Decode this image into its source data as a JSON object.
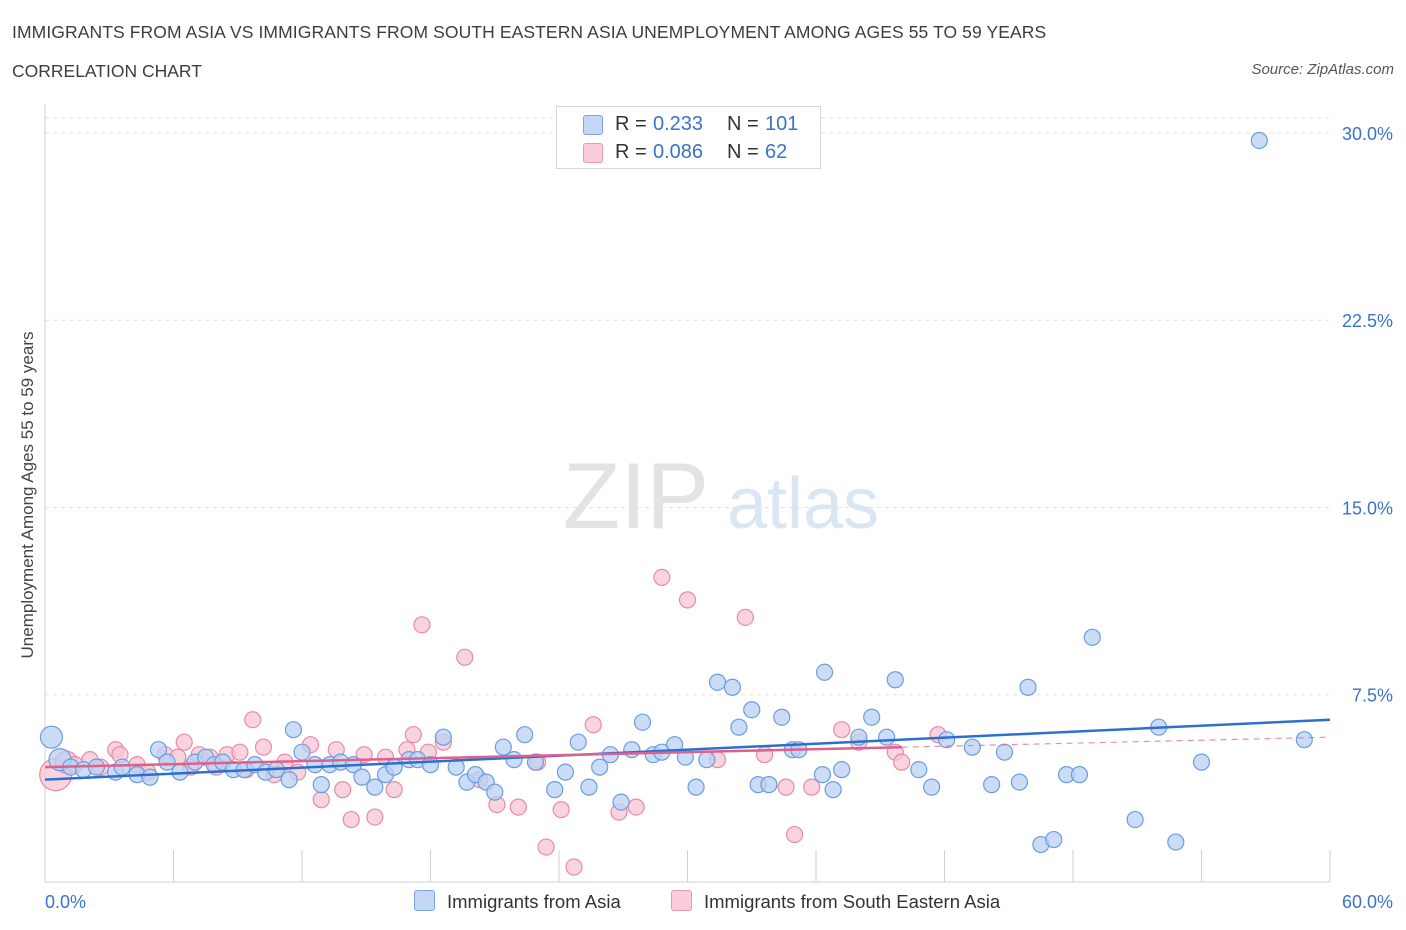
{
  "header": {
    "title": "IMMIGRANTS FROM ASIA VS IMMIGRANTS FROM SOUTH EASTERN ASIA UNEMPLOYMENT AMONG AGES 55 TO 59 YEARS",
    "subtitle": "CORRELATION CHART",
    "source": "Source: ZipAtlas.com"
  },
  "watermark": {
    "zip": "ZIP",
    "atlas": "atlas"
  },
  "legend": {
    "rows": [
      {
        "r_label": "R =",
        "r_value": "0.233",
        "n_label": "N =",
        "n_value": "101"
      },
      {
        "r_label": "R =",
        "r_value": "0.086",
        "n_label": "N =",
        "n_value": "62"
      }
    ]
  },
  "colors": {
    "blue_fill": "#b9d1f3",
    "blue_stroke": "#6b9de0",
    "blue_line": "#2d6fcf",
    "pink_fill": "#f7c4d3",
    "pink_stroke": "#e88aa8",
    "pink_line": "#e0608c",
    "axis_text": "#3a73c8",
    "grid": "#e2e2e2"
  },
  "chart_data": {
    "type": "scatter",
    "title": "IMMIGRANTS FROM ASIA VS IMMIGRANTS FROM SOUTH EASTERN ASIA UNEMPLOYMENT AMONG AGES 55 TO 59 YEARS",
    "xlabel": "",
    "ylabel": "Unemployment Among Ages 55 to 59 years",
    "xlim": [
      0,
      60
    ],
    "ylim": [
      0,
      30
    ],
    "x_tick_labels": [
      "0.0%",
      "60.0%"
    ],
    "y_ticks": [
      7.5,
      15.0,
      22.5,
      30.0
    ],
    "y_tick_labels": [
      "7.5%",
      "15.0%",
      "22.5%",
      "30.0%"
    ],
    "grid": true,
    "legend_position": "top-center",
    "series": [
      {
        "name": "Immigrants from Asia",
        "color": "#6b9de0",
        "trend": {
          "x": [
            0,
            60
          ],
          "y": [
            4.1,
            6.5
          ]
        },
        "points": [
          [
            0.3,
            5.8,
            2
          ],
          [
            0.7,
            4.9,
            2
          ],
          [
            1.2,
            4.6,
            1
          ],
          [
            1.8,
            4.5,
            1
          ],
          [
            2.4,
            4.6,
            1
          ],
          [
            3.3,
            4.4,
            1
          ],
          [
            3.6,
            4.6,
            1
          ],
          [
            4.3,
            4.3,
            1
          ],
          [
            4.9,
            4.2,
            1
          ],
          [
            5.3,
            5.3,
            1
          ],
          [
            5.7,
            4.8,
            1
          ],
          [
            6.3,
            4.4,
            1
          ],
          [
            7.0,
            4.8,
            1
          ],
          [
            7.5,
            5.0,
            1
          ],
          [
            7.9,
            4.7,
            1
          ],
          [
            8.3,
            4.8,
            1
          ],
          [
            8.8,
            4.5,
            1
          ],
          [
            9.3,
            4.5,
            1
          ],
          [
            9.8,
            4.7,
            1
          ],
          [
            10.3,
            4.4,
            1
          ],
          [
            10.8,
            4.5,
            1
          ],
          [
            11.4,
            4.1,
            1
          ],
          [
            11.6,
            6.1,
            1
          ],
          [
            12.0,
            5.2,
            1
          ],
          [
            12.6,
            4.7,
            1
          ],
          [
            12.9,
            3.9,
            1
          ],
          [
            13.3,
            4.7,
            1
          ],
          [
            13.8,
            4.8,
            1
          ],
          [
            14.4,
            4.7,
            1
          ],
          [
            14.8,
            4.2,
            1
          ],
          [
            15.4,
            3.8,
            1
          ],
          [
            15.9,
            4.3,
            1
          ],
          [
            16.3,
            4.6,
            1
          ],
          [
            17.0,
            4.9,
            1
          ],
          [
            17.4,
            4.9,
            1
          ],
          [
            18.0,
            4.7,
            1
          ],
          [
            18.6,
            5.8,
            1
          ],
          [
            19.2,
            4.6,
            1
          ],
          [
            19.7,
            4.0,
            1
          ],
          [
            20.1,
            4.3,
            1
          ],
          [
            20.6,
            4.0,
            1
          ],
          [
            21.0,
            3.6,
            1
          ],
          [
            21.4,
            5.4,
            1
          ],
          [
            21.9,
            4.9,
            1
          ],
          [
            22.4,
            5.9,
            1
          ],
          [
            22.9,
            4.8,
            1
          ],
          [
            23.8,
            3.7,
            1
          ],
          [
            24.3,
            4.4,
            1
          ],
          [
            24.9,
            5.6,
            1
          ],
          [
            25.4,
            3.8,
            1
          ],
          [
            25.9,
            4.6,
            1
          ],
          [
            26.4,
            5.1,
            1
          ],
          [
            26.9,
            3.2,
            1
          ],
          [
            27.4,
            5.3,
            1
          ],
          [
            27.9,
            6.4,
            1
          ],
          [
            28.4,
            5.1,
            1
          ],
          [
            28.8,
            5.2,
            1
          ],
          [
            29.4,
            5.5,
            1
          ],
          [
            29.9,
            5.0,
            1
          ],
          [
            30.4,
            3.8,
            1
          ],
          [
            30.9,
            4.9,
            1
          ],
          [
            31.4,
            8.0,
            1
          ],
          [
            32.1,
            7.8,
            1
          ],
          [
            32.4,
            6.2,
            1
          ],
          [
            33.0,
            6.9,
            1
          ],
          [
            33.3,
            3.9,
            1
          ],
          [
            33.8,
            3.9,
            1
          ],
          [
            34.4,
            6.6,
            1
          ],
          [
            34.9,
            5.3,
            1
          ],
          [
            35.2,
            5.3,
            1
          ],
          [
            36.3,
            4.3,
            1
          ],
          [
            36.8,
            3.7,
            1
          ],
          [
            37.2,
            4.5,
            1
          ],
          [
            36.4,
            8.4,
            1
          ],
          [
            38.0,
            5.8,
            1
          ],
          [
            38.6,
            6.6,
            1
          ],
          [
            39.3,
            5.8,
            1
          ],
          [
            39.7,
            8.1,
            1
          ],
          [
            40.8,
            4.5,
            1
          ],
          [
            41.4,
            3.8,
            1
          ],
          [
            42.1,
            5.7,
            1
          ],
          [
            43.3,
            5.4,
            1
          ],
          [
            44.2,
            3.9,
            1
          ],
          [
            44.8,
            5.2,
            1
          ],
          [
            45.5,
            4.0,
            1
          ],
          [
            45.9,
            7.8,
            1
          ],
          [
            46.5,
            1.5,
            1
          ],
          [
            47.1,
            1.7,
            1
          ],
          [
            47.7,
            4.3,
            1
          ],
          [
            48.3,
            4.3,
            1
          ],
          [
            48.9,
            9.8,
            1
          ],
          [
            50.9,
            2.5,
            1
          ],
          [
            52.0,
            6.2,
            1
          ],
          [
            52.8,
            1.6,
            1
          ],
          [
            54.0,
            4.8,
            1
          ],
          [
            56.7,
            29.7,
            1
          ],
          [
            58.8,
            5.7,
            1
          ]
        ]
      },
      {
        "name": "Immigrants from South Eastern Asia",
        "color": "#e88aa8",
        "trend": {
          "x": [
            0,
            40
          ],
          "y": [
            4.6,
            5.4
          ]
        },
        "trend_dashed": {
          "x": [
            40,
            60
          ],
          "y": [
            5.4,
            5.8
          ]
        },
        "points": [
          [
            0.5,
            4.3,
            3
          ],
          [
            1.0,
            4.8,
            2
          ],
          [
            1.4,
            4.7,
            1
          ],
          [
            2.1,
            4.9,
            1
          ],
          [
            2.6,
            4.6,
            1
          ],
          [
            3.3,
            5.3,
            1
          ],
          [
            3.5,
            5.1,
            1
          ],
          [
            4.3,
            4.7,
            1
          ],
          [
            4.8,
            4.4,
            1
          ],
          [
            5.6,
            5.1,
            1
          ],
          [
            6.2,
            5.0,
            1
          ],
          [
            6.5,
            5.6,
            1
          ],
          [
            6.8,
            4.6,
            1
          ],
          [
            7.2,
            5.1,
            1
          ],
          [
            7.7,
            5.0,
            1
          ],
          [
            8.0,
            4.6,
            1
          ],
          [
            8.5,
            5.1,
            1
          ],
          [
            9.1,
            5.2,
            1
          ],
          [
            9.4,
            4.5,
            1
          ],
          [
            9.7,
            6.5,
            1
          ],
          [
            10.2,
            5.4,
            1
          ],
          [
            10.7,
            4.3,
            1
          ],
          [
            11.2,
            4.8,
            1
          ],
          [
            11.8,
            4.4,
            1
          ],
          [
            12.4,
            5.5,
            1
          ],
          [
            12.9,
            3.3,
            1
          ],
          [
            13.6,
            5.3,
            1
          ],
          [
            13.9,
            3.7,
            1
          ],
          [
            14.3,
            2.5,
            1
          ],
          [
            14.9,
            5.1,
            1
          ],
          [
            15.4,
            2.6,
            1
          ],
          [
            15.9,
            5.0,
            1
          ],
          [
            16.3,
            3.7,
            1
          ],
          [
            16.9,
            5.3,
            1
          ],
          [
            17.2,
            5.9,
            1
          ],
          [
            17.6,
            10.3,
            1
          ],
          [
            17.9,
            5.2,
            1
          ],
          [
            18.6,
            5.6,
            1
          ],
          [
            19.6,
            9.0,
            1
          ],
          [
            20.3,
            4.1,
            1
          ],
          [
            21.1,
            3.1,
            1
          ],
          [
            22.1,
            3.0,
            1
          ],
          [
            23.0,
            4.8,
            1
          ],
          [
            23.4,
            1.4,
            1
          ],
          [
            24.1,
            2.9,
            1
          ],
          [
            24.7,
            0.6,
            1
          ],
          [
            25.6,
            6.3,
            1
          ],
          [
            26.8,
            2.8,
            1
          ],
          [
            27.6,
            3.0,
            1
          ],
          [
            28.8,
            12.2,
            1
          ],
          [
            30.0,
            11.3,
            1
          ],
          [
            31.4,
            4.9,
            1
          ],
          [
            32.7,
            10.6,
            1
          ],
          [
            33.6,
            5.1,
            1
          ],
          [
            34.6,
            3.8,
            1
          ],
          [
            35.0,
            1.9,
            1
          ],
          [
            35.8,
            3.8,
            1
          ],
          [
            37.2,
            6.1,
            1
          ],
          [
            38.0,
            5.6,
            1
          ],
          [
            39.7,
            5.2,
            1
          ],
          [
            40.0,
            4.8,
            1
          ],
          [
            41.7,
            5.9,
            1
          ]
        ]
      }
    ]
  },
  "bottom_legend": {
    "items": [
      {
        "label": "Immigrants from Asia"
      },
      {
        "label": "Immigrants from South Eastern Asia"
      }
    ]
  }
}
